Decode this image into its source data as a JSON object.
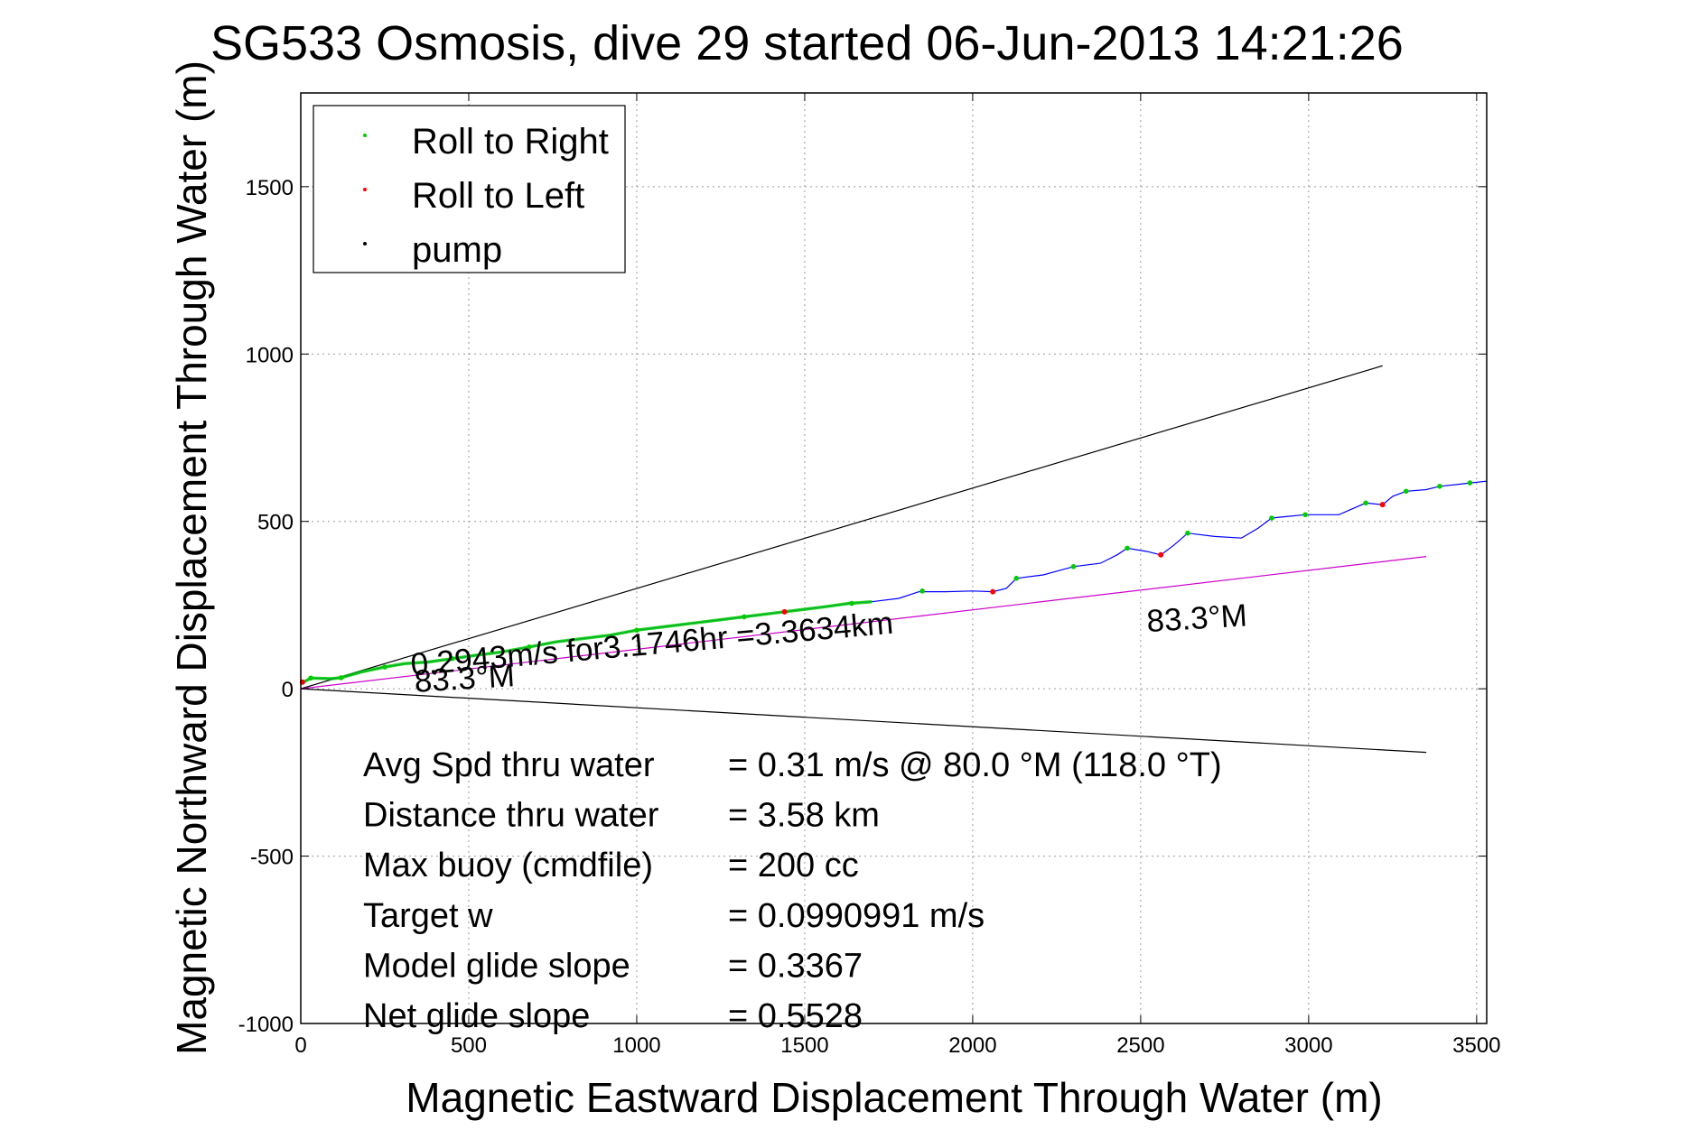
{
  "chart_data": {
    "type": "line",
    "title": "SG533 Osmosis, dive 29 started 06-Jun-2013 14:21:26",
    "xlabel": "Magnetic Eastward Displacement Through Water (m)",
    "ylabel": "Magnetic Northward Displacement Through Water (m)",
    "xlim": [
      0,
      3530
    ],
    "ylim": [
      -1000,
      1780
    ],
    "xticks": [
      0,
      500,
      1000,
      1500,
      2000,
      2500,
      3000,
      3500
    ],
    "yticks": [
      -1000,
      -500,
      0,
      500,
      1000,
      1500
    ],
    "grid": true,
    "legend_placement": "top-left",
    "legend": [
      {
        "label": "Roll to Right",
        "color": "#00cc00"
      },
      {
        "label": "Roll to Left",
        "color": "#ff0000"
      },
      {
        "label": "pump",
        "color": "#000000"
      }
    ],
    "series": [
      {
        "name": "track",
        "color": "#0000ff",
        "x": [
          0,
          30,
          90,
          120,
          180,
          250,
          310,
          380,
          450,
          520,
          600,
          680,
          760,
          840,
          920,
          1000,
          1080,
          1160,
          1240,
          1320,
          1400,
          1480,
          1560,
          1630,
          1700,
          1780,
          1840,
          1920,
          2000,
          2060,
          2100,
          2130,
          2210,
          2300,
          2380,
          2430,
          2460,
          2520,
          2560,
          2600,
          2640,
          2720,
          2800,
          2850,
          2890,
          2940,
          2990,
          3090,
          3170,
          3220,
          3250,
          3290,
          3350,
          3390,
          3440,
          3480,
          3530
        ],
        "y": [
          15,
          32,
          30,
          33,
          50,
          65,
          75,
          80,
          90,
          100,
          110,
          125,
          140,
          150,
          160,
          175,
          185,
          195,
          205,
          215,
          225,
          235,
          245,
          255,
          260,
          270,
          290,
          290,
          292,
          290,
          300,
          330,
          340,
          365,
          375,
          400,
          420,
          410,
          400,
          430,
          465,
          455,
          450,
          480,
          510,
          515,
          520,
          520,
          555,
          550,
          575,
          590,
          595,
          605,
          610,
          615,
          620
        ]
      },
      {
        "name": "Roll to Right",
        "color": "#00cc00",
        "x": [
          30,
          120,
          250,
          450,
          680,
          1000,
          1320,
          1640,
          1850,
          2130,
          2300,
          2460,
          2640,
          2890,
          2990,
          3170,
          3290,
          3390,
          3480
        ],
        "y": [
          32,
          33,
          65,
          90,
          125,
          175,
          215,
          255,
          292,
          330,
          365,
          420,
          465,
          510,
          520,
          555,
          590,
          605,
          615
        ]
      },
      {
        "name": "Roll to Left",
        "color": "#ff0000",
        "x": [
          5,
          1440,
          2060,
          2560,
          3220
        ],
        "y": [
          20,
          230,
          290,
          400,
          550
        ]
      }
    ],
    "reference_lines": [
      {
        "color": "#000000",
        "x": [
          0,
          3220
        ],
        "y": [
          0,
          965
        ]
      },
      {
        "color": "#000000",
        "x": [
          0,
          3350
        ],
        "y": [
          0,
          -190
        ]
      },
      {
        "color": "#cc00cc",
        "x": [
          0,
          3350
        ],
        "y": [
          0,
          395
        ]
      }
    ],
    "annotations": [
      {
        "text": "0.2943m/s for3.1746hr =3.3634km",
        "x": 330,
        "y": 40,
        "angle": -5.0
      },
      {
        "text": "83.3°M",
        "x": 340,
        "y": -10,
        "angle": -3.5
      },
      {
        "text": "83.3°M",
        "x": 2520,
        "y": 170,
        "angle": -3.5
      }
    ],
    "stats": [
      {
        "label": "Avg Spd thru water",
        "value": "=  0.31 m/s @  80.0 °M (118.0 °T)"
      },
      {
        "label": "Distance thru water",
        "value": "=  3.58 km"
      },
      {
        "label": "Max buoy (cmdfile)",
        "value": "= 200 cc"
      },
      {
        "label": "Target w",
        "value": "= 0.0990991 m/s"
      },
      {
        "label": "Model glide slope",
        "value": "= 0.3367"
      },
      {
        "label": "Net glide slope",
        "value": "= 0.5528"
      }
    ]
  }
}
